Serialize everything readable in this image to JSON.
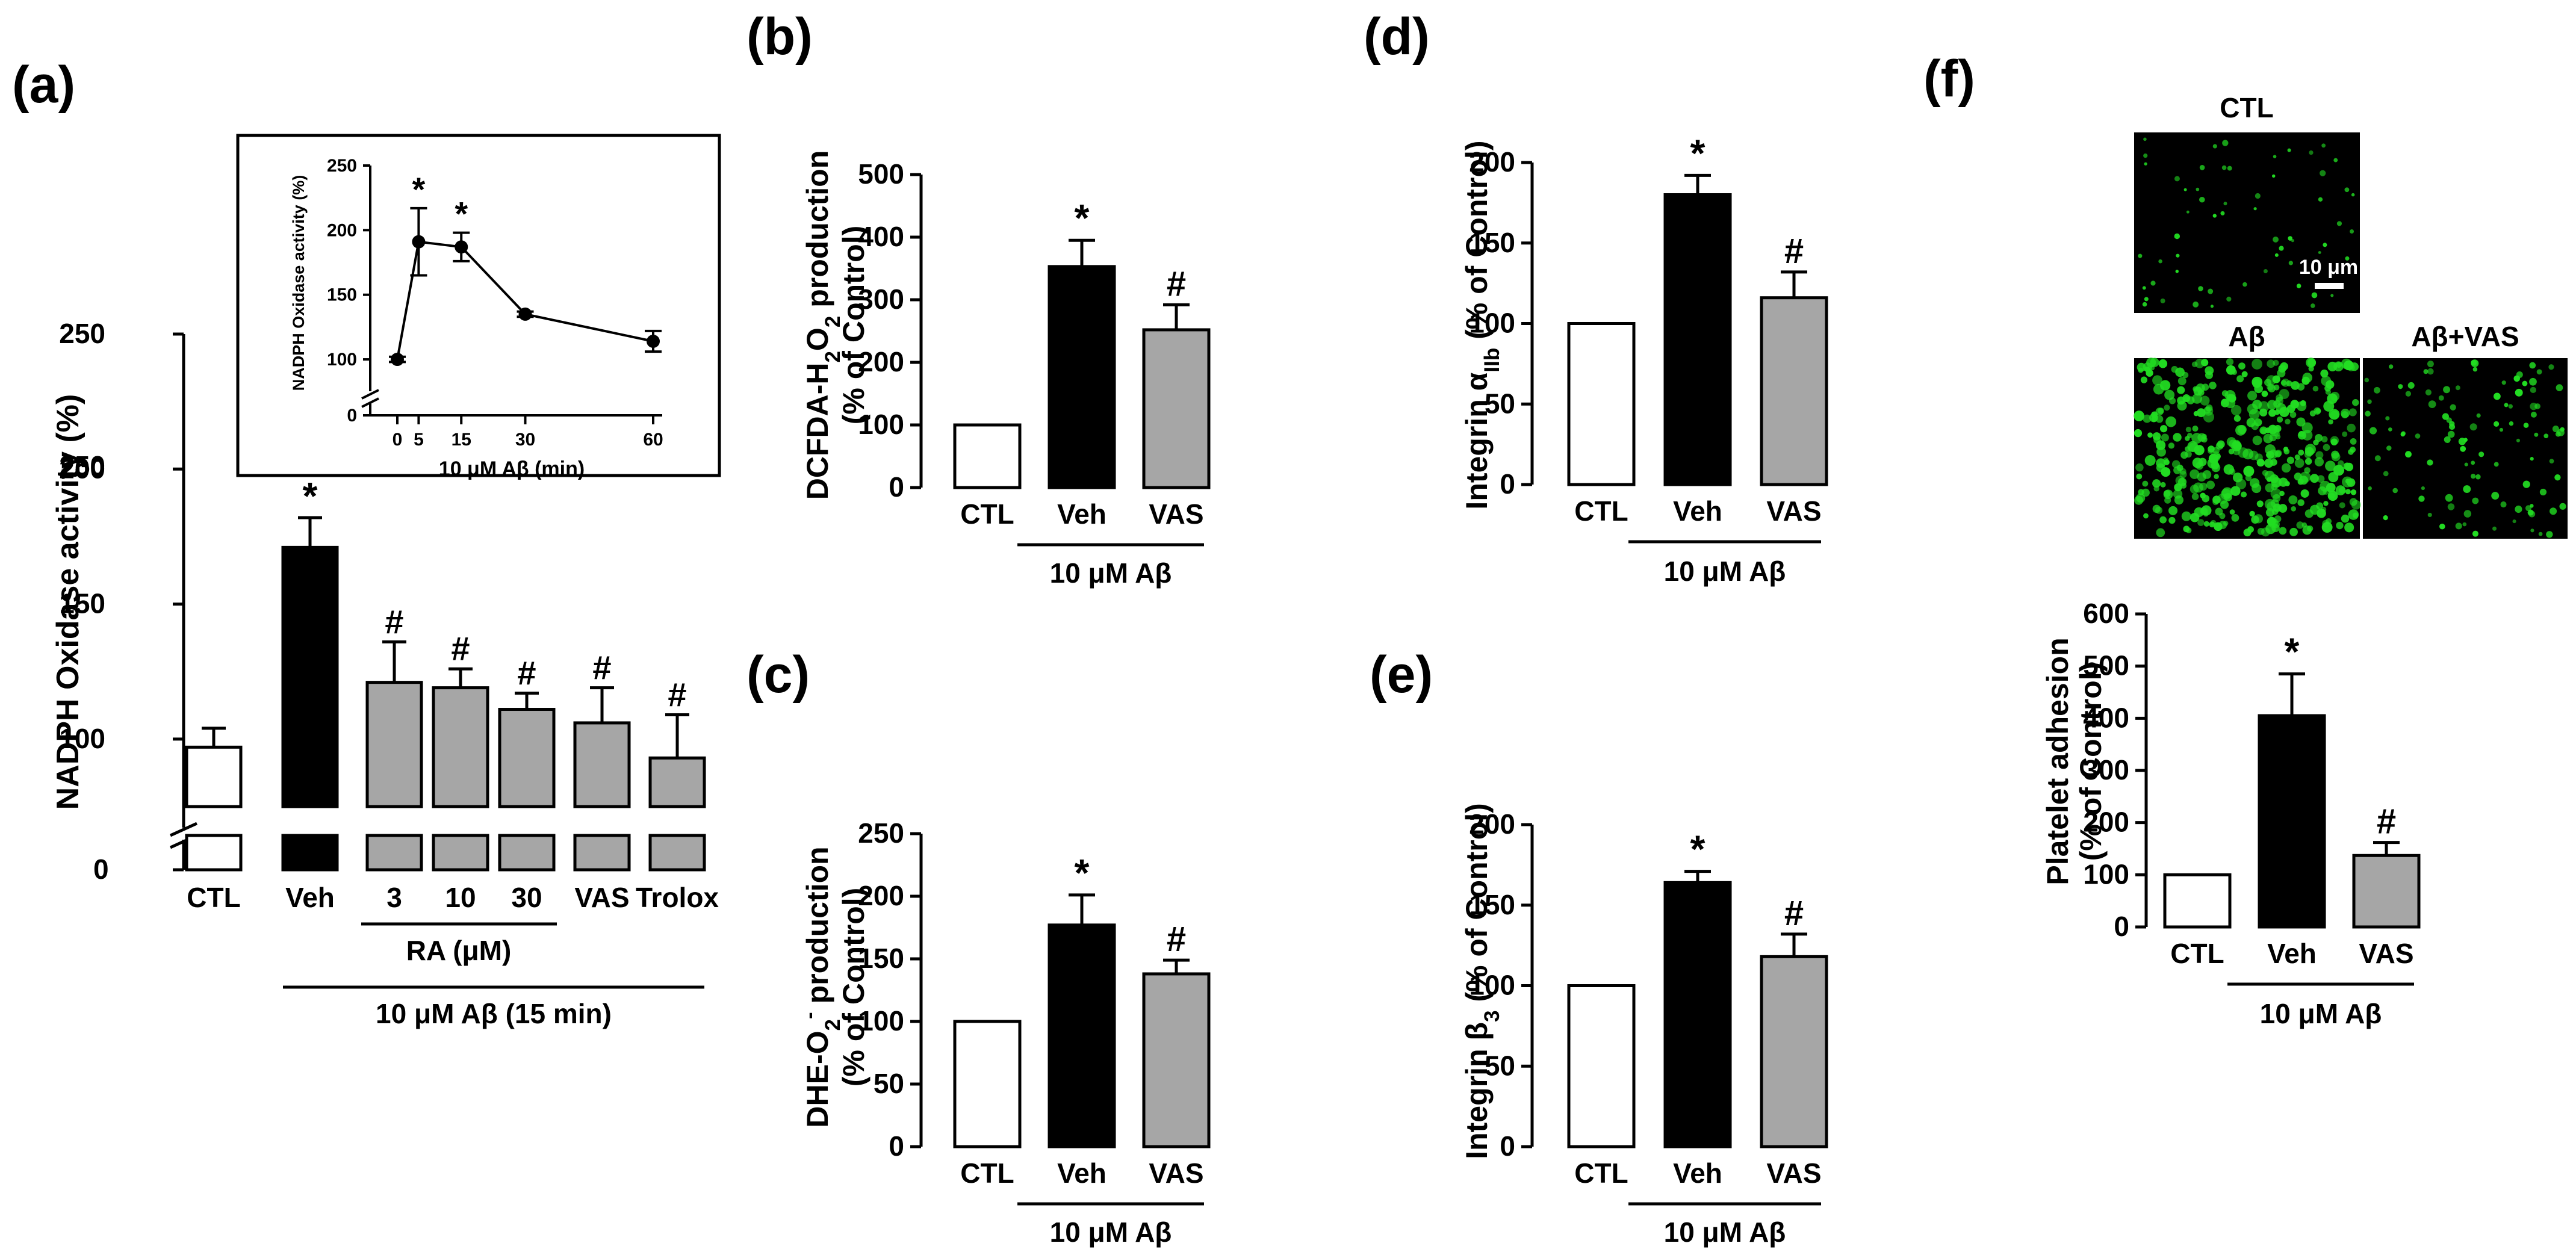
{
  "panel_letters": {
    "a": "(a)",
    "b": "(b)",
    "c": "(c)",
    "d": "(d)",
    "e": "(e)",
    "f": "(f)"
  },
  "colors": {
    "ctl": "#ffffff",
    "veh": "#000000",
    "treat": "#a6a6a6",
    "edge": "#000000",
    "micro_bg": "#000000",
    "micro_dot": "#22dd22"
  },
  "micrographs": {
    "ctl_title": "CTL",
    "ab_title": "Aβ",
    "abvas_title": "Aβ+VAS",
    "scale_label": "10 μm"
  },
  "chart_data": [
    {
      "id": "a",
      "type": "bar",
      "ylabel": "NADPH Oxidase activity (%)",
      "ylim": [
        0,
        250
      ],
      "yticks_upper": [
        "100",
        "150",
        "200",
        "250"
      ],
      "yticks_extra": [
        "250"
      ],
      "ytick_zero": "0",
      "axis_break": true,
      "categories": [
        "CTL",
        "Veh",
        "3",
        "10",
        "30",
        "VAS",
        "Trolox"
      ],
      "values": [
        97,
        171,
        121,
        119,
        111,
        106,
        93
      ],
      "errors": [
        7,
        11,
        15,
        7,
        6,
        13,
        16
      ],
      "fill": [
        "ctl",
        "veh",
        "treat",
        "treat",
        "treat",
        "treat",
        "treat"
      ],
      "annotations": [
        "",
        "*",
        "#",
        "#",
        "#",
        "#",
        "#"
      ],
      "group_label": "RA (μM)",
      "condition_label": "10 μM Aβ (15 min)",
      "inset": {
        "type": "line",
        "ylabel": "NADPH Oxidase activity (%)",
        "xlabel": "10 μM Aβ (min)",
        "x": [
          0,
          5,
          15,
          30,
          60
        ],
        "y": [
          100,
          191,
          187,
          135,
          114
        ],
        "errors": [
          2,
          26,
          11,
          2,
          8
        ],
        "annotations": [
          "",
          "*",
          "*",
          "",
          ""
        ],
        "ylim": [
          0,
          250
        ],
        "yticks": [
          "100",
          "150",
          "200",
          "250"
        ],
        "ytick_zero": "0",
        "xticks": [
          "0",
          "5",
          "15",
          "30",
          "60"
        ]
      }
    },
    {
      "id": "b",
      "type": "bar",
      "ylabel": "DCFDA-H₂O₂ production",
      "ylabel2": "(% of Control)",
      "ylim": [
        0,
        500
      ],
      "yticks": [
        "0",
        "100",
        "200",
        "300",
        "400",
        "500"
      ],
      "categories": [
        "CTL",
        "Veh",
        "VAS"
      ],
      "values": [
        100,
        353,
        252
      ],
      "errors": [
        0,
        42,
        40
      ],
      "fill": [
        "ctl",
        "veh",
        "treat"
      ],
      "annotations": [
        "",
        "*",
        "#"
      ],
      "condition_label": "10 μM Aβ"
    },
    {
      "id": "c",
      "type": "bar",
      "ylabel": "DHE-O₂⁻ production",
      "ylabel2": "(% of Control)",
      "ylim": [
        0,
        250
      ],
      "yticks": [
        "0",
        "50",
        "100",
        "150",
        "200",
        "250"
      ],
      "categories": [
        "CTL",
        "Veh",
        "VAS"
      ],
      "values": [
        100,
        177,
        138
      ],
      "errors": [
        0,
        24,
        11
      ],
      "fill": [
        "ctl",
        "veh",
        "treat"
      ],
      "annotations": [
        "",
        "*",
        "#"
      ],
      "condition_label": "10 μM Aβ"
    },
    {
      "id": "d",
      "type": "bar",
      "ylabel": "Integrin αIIb (% of Control)",
      "ylim": [
        0,
        200
      ],
      "yticks": [
        "0",
        "50",
        "100",
        "150",
        "200"
      ],
      "categories": [
        "CTL",
        "Veh",
        "VAS"
      ],
      "values": [
        100,
        180,
        116
      ],
      "errors": [
        0,
        12,
        16
      ],
      "fill": [
        "ctl",
        "veh",
        "treat"
      ],
      "annotations": [
        "",
        "*",
        "#"
      ],
      "condition_label": "10 μM Aβ"
    },
    {
      "id": "e",
      "type": "bar",
      "ylabel": "Integrin β₃ (% of Control)",
      "ylim": [
        0,
        200
      ],
      "yticks": [
        "0",
        "50",
        "100",
        "150",
        "200"
      ],
      "categories": [
        "CTL",
        "Veh",
        "VAS"
      ],
      "values": [
        100,
        164,
        118
      ],
      "errors": [
        0,
        7,
        14
      ],
      "fill": [
        "ctl",
        "veh",
        "treat"
      ],
      "annotations": [
        "",
        "*",
        "#"
      ],
      "condition_label": "10 μM Aβ"
    },
    {
      "id": "f",
      "type": "bar",
      "ylabel": "Platelet adhesion",
      "ylabel2": "(% of Control)",
      "ylim": [
        0,
        600
      ],
      "yticks": [
        "0",
        "100",
        "200",
        "300",
        "400",
        "500",
        "600"
      ],
      "categories": [
        "CTL",
        "Veh",
        "VAS"
      ],
      "values": [
        100,
        405,
        137
      ],
      "errors": [
        0,
        80,
        25
      ],
      "fill": [
        "ctl",
        "veh",
        "treat"
      ],
      "annotations": [
        "",
        "*",
        "#"
      ],
      "condition_label": "10 μM Aβ"
    }
  ]
}
